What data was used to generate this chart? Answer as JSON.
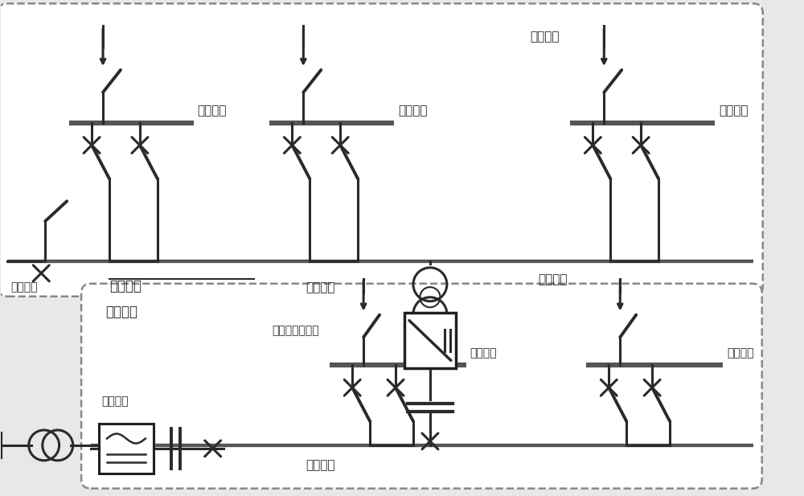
{
  "bg_color": "#e8e8e8",
  "line_color": "#2a2a2a",
  "bus_color": "#555555",
  "white": "#ffffff",
  "font_main": 11,
  "font_sub": 10,
  "lw_bus": 4.5,
  "lw_line": 2.2,
  "lw_switch": 2.8,
  "labels": {
    "ac_bus1": "交流母线",
    "ac_bus2": "交流母线",
    "ac_bus3": "交流母线",
    "ac_bus_left": "交流母线",
    "ac_subnet": "交流子网",
    "ac_branch": "交流支路",
    "dc_subnet": "直流子网",
    "dc_bus_left": "直流母线",
    "dc_bus_mid": "直流母线",
    "dc_bus_right": "直流母线",
    "dc_branch": "直流支路",
    "ac_dc_switch": "交直流联络开关",
    "power_unit_ac": "用电单元",
    "power_unit_dc": "用电单元"
  }
}
